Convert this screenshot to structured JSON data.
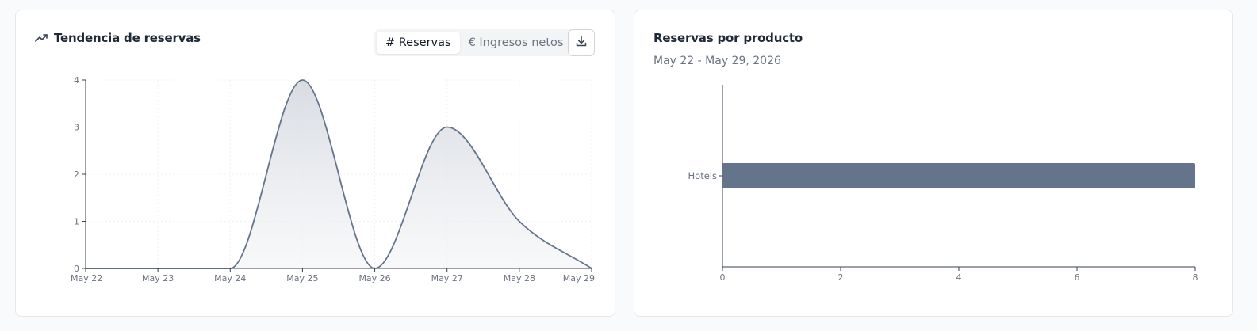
{
  "left_card": {
    "title": "Tendencia de reservas",
    "icon": "trending-up-icon",
    "toggle": {
      "options": [
        "# Reservas",
        "€ Ingresos netos"
      ],
      "selected": "# Reservas"
    },
    "download_icon": "download-icon"
  },
  "right_card": {
    "title": "Reservas por producto",
    "subtitle": "May 22 - May 29, 2026"
  },
  "colors": {
    "series": "#64748b",
    "axis": "#374151",
    "tick_text": "#6b7280",
    "grid": "#eef0f3"
  },
  "chart_data": [
    {
      "type": "area",
      "title": "Tendencia de reservas",
      "categories": [
        "May 22",
        "May 23",
        "May 24",
        "May 25",
        "May 26",
        "May 27",
        "May 28",
        "May 29"
      ],
      "series": [
        {
          "values": [
            0,
            0,
            0,
            4,
            0,
            3,
            1,
            0
          ]
        }
      ],
      "ylim": [
        0,
        4
      ],
      "yticks": [
        0,
        1,
        2,
        3,
        4
      ],
      "grid": true,
      "curve": "smooth"
    },
    {
      "type": "bar",
      "orientation": "horizontal",
      "title": "Reservas por producto",
      "categories": [
        "Hotels"
      ],
      "values": [
        8
      ],
      "xlim": [
        0,
        8
      ],
      "xticks": [
        0,
        2,
        4,
        6,
        8
      ],
      "grid": false
    }
  ]
}
